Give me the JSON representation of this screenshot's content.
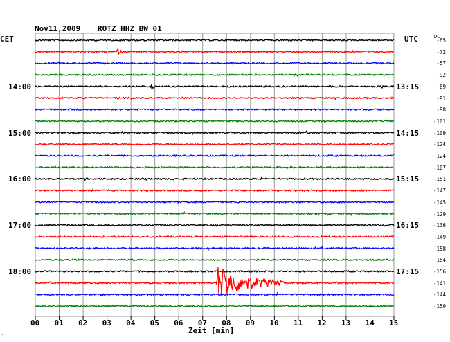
{
  "header": {
    "date": "Nov11,2009",
    "station": "ROTZ HHZ BW 01",
    "left_zone": "CET",
    "right_zone": "UTC",
    "dc_label": "DC"
  },
  "colors": {
    "trace_cycle": [
      "#000000",
      "#ff0000",
      "#0000ff",
      "#008000"
    ],
    "grid": "#999999",
    "background": "#ffffff"
  },
  "chart_data": {
    "type": "line",
    "title": "Nov11,2009   ROTZ HHZ BW 01",
    "xlabel": "Zeit [min]",
    "ylabel": "",
    "xlim": [
      0,
      15
    ],
    "x_ticks": [
      "00",
      "01",
      "02",
      "03",
      "04",
      "05",
      "06",
      "07",
      "08",
      "09",
      "10",
      "11",
      "12",
      "13",
      "14",
      "15"
    ],
    "row_minutes": 15,
    "num_rows": 24,
    "left_time_labels": [
      {
        "row": 4,
        "label": "14:00"
      },
      {
        "row": 8,
        "label": "15:00"
      },
      {
        "row": 12,
        "label": "16:00"
      },
      {
        "row": 16,
        "label": "17:00"
      },
      {
        "row": 20,
        "label": "18:00"
      }
    ],
    "right_time_labels": [
      {
        "row": 4,
        "label": "13:15"
      },
      {
        "row": 8,
        "label": "14:15"
      },
      {
        "row": 12,
        "label": "15:15"
      },
      {
        "row": 16,
        "label": "16:15"
      },
      {
        "row": 20,
        "label": "17:15"
      }
    ],
    "dc_offsets": [
      "-65",
      "-72",
      "-57",
      "-92",
      "-89",
      "-91",
      "-98",
      "-101",
      "-109",
      "-124",
      "-124",
      "-107",
      "-151",
      "-147",
      "-145",
      "-129",
      "-136",
      "-149",
      "-158",
      "-154",
      "-156",
      "-141",
      "-144",
      "-150"
    ],
    "events": [
      {
        "row": 1,
        "minute": 3.4,
        "peak": 6,
        "duration_min": 0.3
      },
      {
        "row": 4,
        "minute": 4.8,
        "peak": 9,
        "duration_min": 0.3
      },
      {
        "row": 21,
        "minute": 7.6,
        "peak": 26,
        "duration_min": 2.8
      }
    ],
    "grid": true
  }
}
